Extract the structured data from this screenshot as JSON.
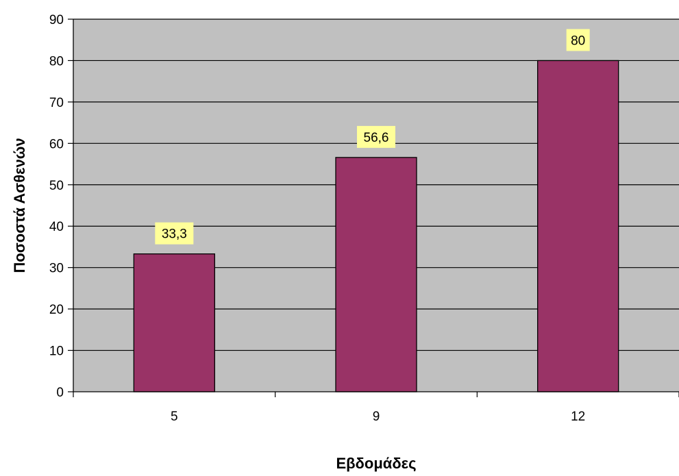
{
  "chart_data": {
    "type": "bar",
    "categories": [
      "5",
      "9",
      "12"
    ],
    "values": [
      33.3,
      56.6,
      80
    ],
    "data_labels": [
      "33,3",
      "56,6",
      "80"
    ],
    "title": "",
    "xlabel": "Εβδομάδες",
    "ylabel": "Ποσοστά Ασθενών",
    "ylim": [
      0,
      90
    ],
    "yticks": [
      0,
      10,
      20,
      30,
      40,
      50,
      60,
      70,
      80,
      90
    ],
    "grid": true,
    "legend": "none",
    "colors": {
      "bar": "#993366",
      "plot_background": "#c0c0c0",
      "data_label_background": "#ffff99",
      "gridline": "#000000"
    }
  }
}
